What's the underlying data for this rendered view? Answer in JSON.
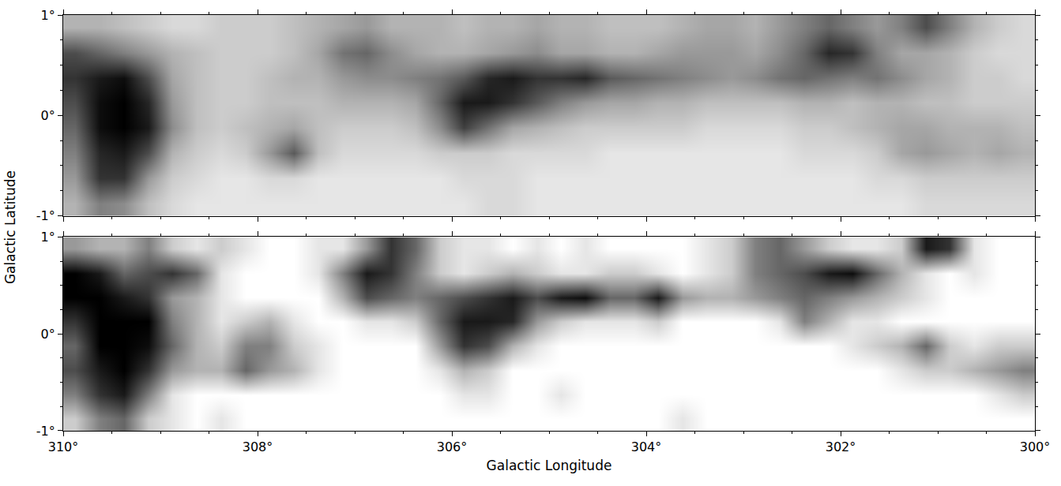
{
  "chart_data": [
    {
      "type": "heatmap",
      "x": [
        309.875,
        309.625,
        309.375,
        309.125,
        308.875,
        308.625,
        308.375,
        308.125,
        307.875,
        307.625,
        307.375,
        307.125,
        306.875,
        306.625,
        306.375,
        306.125,
        305.875,
        305.625,
        305.375,
        305.125,
        304.875,
        304.625,
        304.375,
        304.125,
        303.875,
        303.625,
        303.375,
        303.125,
        302.875,
        302.625,
        302.375,
        302.125,
        301.875,
        301.625,
        301.375,
        301.125,
        300.875,
        300.625,
        300.375,
        300.125
      ],
      "y": [
        -0.875,
        -0.625,
        -0.375,
        -0.125,
        0.125,
        0.375,
        0.625,
        0.875
      ],
      "z": [
        [
          0.3,
          0.5,
          0.45,
          0.25,
          0.15,
          0.1,
          0.1,
          0.1,
          0.1,
          0.1,
          0.1,
          0.1,
          0.1,
          0.1,
          0.1,
          0.1,
          0.1,
          0.15,
          0.15,
          0.1,
          0.1,
          0.1,
          0.1,
          0.1,
          0.1,
          0.1,
          0.1,
          0.1,
          0.1,
          0.1,
          0.1,
          0.1,
          0.1,
          0.1,
          0.1,
          0.15,
          0.15,
          0.15,
          0.15,
          0.15
        ],
        [
          0.4,
          0.8,
          0.8,
          0.4,
          0.2,
          0.15,
          0.1,
          0.1,
          0.15,
          0.15,
          0.1,
          0.1,
          0.1,
          0.1,
          0.1,
          0.1,
          0.15,
          0.15,
          0.15,
          0.1,
          0.1,
          0.1,
          0.1,
          0.1,
          0.1,
          0.1,
          0.1,
          0.1,
          0.1,
          0.1,
          0.1,
          0.1,
          0.1,
          0.15,
          0.15,
          0.2,
          0.2,
          0.2,
          0.2,
          0.2
        ],
        [
          0.5,
          0.85,
          0.9,
          0.7,
          0.3,
          0.2,
          0.15,
          0.2,
          0.4,
          0.65,
          0.25,
          0.15,
          0.15,
          0.15,
          0.15,
          0.2,
          0.2,
          0.2,
          0.15,
          0.15,
          0.15,
          0.15,
          0.1,
          0.1,
          0.1,
          0.1,
          0.1,
          0.1,
          0.1,
          0.1,
          0.15,
          0.15,
          0.15,
          0.2,
          0.35,
          0.4,
          0.35,
          0.3,
          0.35,
          0.3
        ],
        [
          0.6,
          0.95,
          1,
          0.9,
          0.45,
          0.25,
          0.2,
          0.25,
          0.3,
          0.35,
          0.25,
          0.2,
          0.2,
          0.2,
          0.25,
          0.45,
          0.75,
          0.55,
          0.35,
          0.3,
          0.25,
          0.2,
          0.2,
          0.2,
          0.2,
          0.2,
          0.15,
          0.15,
          0.15,
          0.15,
          0.2,
          0.2,
          0.25,
          0.3,
          0.35,
          0.35,
          0.3,
          0.3,
          0.3,
          0.25
        ],
        [
          0.7,
          0.95,
          1,
          0.85,
          0.4,
          0.25,
          0.2,
          0.2,
          0.25,
          0.25,
          0.25,
          0.3,
          0.3,
          0.3,
          0.35,
          0.6,
          0.9,
          0.9,
          0.8,
          0.65,
          0.5,
          0.4,
          0.35,
          0.35,
          0.3,
          0.3,
          0.25,
          0.25,
          0.25,
          0.25,
          0.3,
          0.3,
          0.25,
          0.3,
          0.3,
          0.25,
          0.25,
          0.2,
          0.2,
          0.2
        ],
        [
          0.8,
          0.9,
          0.95,
          0.7,
          0.35,
          0.25,
          0.2,
          0.2,
          0.25,
          0.3,
          0.3,
          0.4,
          0.45,
          0.45,
          0.5,
          0.55,
          0.65,
          0.85,
          0.9,
          0.8,
          0.8,
          0.85,
          0.65,
          0.6,
          0.55,
          0.5,
          0.45,
          0.4,
          0.45,
          0.55,
          0.6,
          0.55,
          0.5,
          0.55,
          0.45,
          0.35,
          0.3,
          0.2,
          0.2,
          0.15
        ],
        [
          0.7,
          0.6,
          0.5,
          0.4,
          0.3,
          0.25,
          0.2,
          0.2,
          0.2,
          0.25,
          0.35,
          0.55,
          0.6,
          0.45,
          0.35,
          0.3,
          0.3,
          0.35,
          0.4,
          0.45,
          0.35,
          0.35,
          0.3,
          0.3,
          0.35,
          0.4,
          0.4,
          0.4,
          0.35,
          0.45,
          0.6,
          0.85,
          0.8,
          0.5,
          0.35,
          0.35,
          0.3,
          0.2,
          0.15,
          0.15
        ],
        [
          0.3,
          0.3,
          0.25,
          0.2,
          0.15,
          0.15,
          0.2,
          0.2,
          0.2,
          0.25,
          0.3,
          0.35,
          0.4,
          0.3,
          0.3,
          0.3,
          0.25,
          0.3,
          0.3,
          0.35,
          0.3,
          0.3,
          0.25,
          0.25,
          0.25,
          0.3,
          0.35,
          0.35,
          0.3,
          0.4,
          0.5,
          0.6,
          0.5,
          0.4,
          0.5,
          0.7,
          0.5,
          0.3,
          0.2,
          0.15
        ]
      ],
      "zlim": [
        0,
        1
      ],
      "xlim": [
        310,
        300
      ],
      "ylim": [
        -1,
        1
      ],
      "xticks": [
        310,
        308,
        306,
        304,
        302,
        300
      ],
      "yticks": [
        {
          "value": -1,
          "label": "-1°"
        },
        {
          "value": 0,
          "label": "0°"
        },
        {
          "value": 1,
          "label": "1°"
        }
      ],
      "tick_labels": "y"
    },
    {
      "type": "heatmap",
      "xlabel": "Galactic Longitude",
      "ylabel": "Galactic Latitude",
      "x": [
        309.875,
        309.625,
        309.375,
        309.125,
        308.875,
        308.625,
        308.375,
        308.125,
        307.875,
        307.625,
        307.375,
        307.125,
        306.875,
        306.625,
        306.375,
        306.125,
        305.875,
        305.625,
        305.375,
        305.125,
        304.875,
        304.625,
        304.375,
        304.125,
        303.875,
        303.625,
        303.375,
        303.125,
        302.875,
        302.625,
        302.375,
        302.125,
        301.875,
        301.625,
        301.375,
        301.125,
        300.875,
        300.625,
        300.375,
        300.125
      ],
      "y": [
        -0.875,
        -0.625,
        -0.375,
        -0.125,
        0.125,
        0.375,
        0.625,
        0.875
      ],
      "z": [
        [
          0.2,
          0.5,
          0.6,
          0.2,
          0.1,
          0,
          0.1,
          0,
          0,
          0,
          0,
          0,
          0,
          0,
          0,
          0,
          0,
          0,
          0,
          0,
          0,
          0,
          0,
          0,
          0,
          0.1,
          0,
          0,
          0,
          0,
          0,
          0,
          0,
          0,
          0,
          0,
          0,
          0,
          0,
          0
        ],
        [
          0.5,
          0.8,
          0.9,
          0.5,
          0.1,
          0,
          0,
          0,
          0,
          0,
          0,
          0,
          0,
          0,
          0,
          0,
          0.1,
          0.1,
          0,
          0,
          0.1,
          0,
          0,
          0,
          0,
          0,
          0,
          0,
          0,
          0,
          0,
          0,
          0,
          0,
          0,
          0,
          0,
          0,
          0.1,
          0.2
        ],
        [
          0.7,
          0.9,
          1,
          0.8,
          0.4,
          0.3,
          0.3,
          0.6,
          0.4,
          0.3,
          0.1,
          0,
          0,
          0,
          0,
          0.1,
          0.3,
          0.2,
          0,
          0,
          0,
          0,
          0,
          0,
          0,
          0,
          0,
          0,
          0,
          0,
          0,
          0,
          0,
          0,
          0.1,
          0.2,
          0.2,
          0.3,
          0.4,
          0.5
        ],
        [
          0.6,
          1,
          1,
          0.95,
          0.6,
          0.3,
          0.2,
          0.5,
          0.5,
          0.2,
          0.1,
          0,
          0,
          0,
          0,
          0.4,
          0.8,
          0.7,
          0.3,
          0.1,
          0,
          0,
          0,
          0,
          0,
          0,
          0,
          0,
          0,
          0,
          0,
          0,
          0.1,
          0.2,
          0.3,
          0.6,
          0.2,
          0.1,
          0.2,
          0.2
        ],
        [
          0.8,
          1,
          1,
          1,
          0.5,
          0.3,
          0.1,
          0.2,
          0.3,
          0.1,
          0,
          0,
          0.1,
          0.1,
          0.2,
          0.6,
          0.9,
          0.9,
          0.85,
          0.4,
          0.2,
          0.1,
          0.1,
          0.1,
          0.2,
          0,
          0,
          0,
          0,
          0.1,
          0.5,
          0.3,
          0.1,
          0.1,
          0,
          0,
          0,
          0,
          0,
          0
        ],
        [
          1,
          1,
          0.9,
          0.8,
          0.4,
          0.3,
          0.1,
          0,
          0,
          0,
          0,
          0.3,
          0.7,
          0.6,
          0.5,
          0.6,
          0.7,
          0.8,
          0.9,
          0.7,
          0.9,
          0.95,
          0.6,
          0.6,
          0.9,
          0.4,
          0.3,
          0.3,
          0.4,
          0.5,
          0.6,
          0.5,
          0.4,
          0.3,
          0.2,
          0.1,
          0,
          0,
          0,
          0
        ],
        [
          1,
          0.9,
          0.6,
          0.7,
          0.8,
          0.6,
          0.1,
          0,
          0,
          0,
          0.1,
          0.5,
          0.9,
          0.8,
          0.5,
          0.2,
          0.1,
          0.2,
          0.3,
          0.2,
          0.1,
          0.1,
          0.2,
          0.2,
          0.1,
          0,
          0.1,
          0.2,
          0.5,
          0.6,
          0.7,
          0.9,
          0.95,
          0.6,
          0.3,
          0.1,
          0,
          0.1,
          0,
          0
        ],
        [
          0.4,
          0.3,
          0.3,
          0.5,
          0.2,
          0.1,
          0.2,
          0.1,
          0,
          0,
          0.1,
          0.1,
          0.4,
          0.8,
          0.6,
          0.2,
          0.1,
          0.1,
          0,
          0.1,
          0,
          0.1,
          0,
          0,
          0,
          0,
          0.1,
          0.2,
          0.5,
          0.6,
          0.4,
          0.2,
          0.1,
          0.1,
          0.2,
          0.9,
          0.8,
          0.1,
          0,
          0
        ]
      ],
      "zlim": [
        0,
        1
      ],
      "xlim": [
        310,
        300
      ],
      "ylim": [
        -1,
        1
      ],
      "xticks": [
        {
          "value": 310,
          "label": "310°"
        },
        {
          "value": 308,
          "label": "308°"
        },
        {
          "value": 306,
          "label": "306°"
        },
        {
          "value": 304,
          "label": "304°"
        },
        {
          "value": 302,
          "label": "302°"
        },
        {
          "value": 300,
          "label": "300°"
        }
      ],
      "yticks": [
        {
          "value": -1,
          "label": "-1°"
        },
        {
          "value": 0,
          "label": "0°"
        },
        {
          "value": 1,
          "label": "1°"
        }
      ]
    }
  ]
}
